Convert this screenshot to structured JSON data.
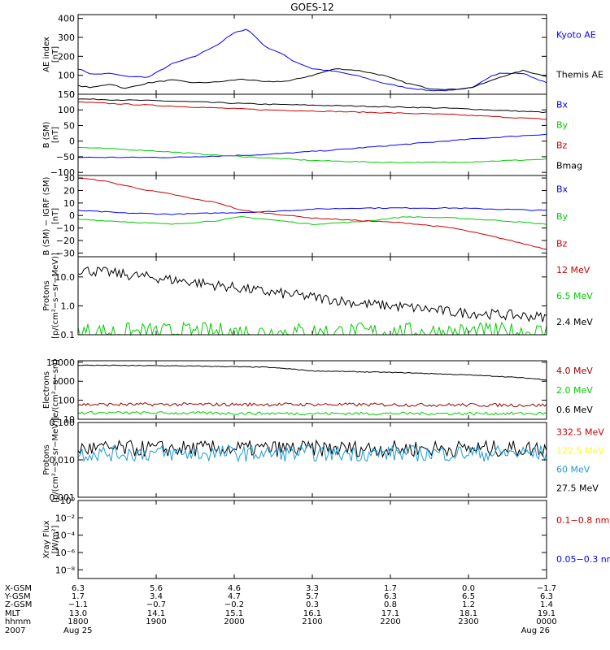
{
  "chart_data": {
    "type": "line",
    "title": "GOES-12",
    "x": {
      "ticks": [
        "1800",
        "1900",
        "2000",
        "2100",
        "2200",
        "2300",
        "0000"
      ]
    },
    "panels": [
      {
        "id": "ae",
        "ylabel": [
          "AE index",
          "[nT]"
        ],
        "ylim": [
          0,
          420
        ],
        "scale": "linear",
        "ticks": [
          0,
          100,
          200,
          300,
          400
        ],
        "tick_labels": [
          "0",
          "100",
          "200",
          "300",
          "400"
        ],
        "legend": [
          {
            "label": "Kyoto AE",
            "color": "#0000ff"
          },
          {
            "label": "Themis AE",
            "color": "#000000"
          }
        ],
        "series": [
          {
            "name": "Kyoto AE",
            "color": "#0000ff",
            "x": [
              0,
              0.03,
              0.07,
              0.1,
              0.15,
              0.2,
              0.25,
              0.28,
              0.3,
              0.33,
              0.36,
              0.38,
              0.4,
              0.43,
              0.46,
              0.5,
              0.55,
              0.6,
              0.65,
              0.7,
              0.75,
              0.8,
              0.84,
              0.88,
              0.9,
              0.95,
              1.0
            ],
            "y": [
              135,
              105,
              110,
              95,
              90,
              160,
              200,
              240,
              265,
              320,
              345,
              300,
              250,
              220,
              175,
              135,
              120,
              95,
              60,
              35,
              20,
              20,
              35,
              95,
              110,
              110,
              60
            ]
          },
          {
            "name": "Themis AE",
            "color": "#000000",
            "x": [
              0,
              0.03,
              0.07,
              0.1,
              0.15,
              0.2,
              0.25,
              0.3,
              0.35,
              0.4,
              0.45,
              0.5,
              0.55,
              0.6,
              0.65,
              0.7,
              0.75,
              0.8,
              0.84,
              0.88,
              0.9,
              0.95,
              1.0
            ],
            "y": [
              45,
              35,
              55,
              30,
              60,
              75,
              60,
              65,
              80,
              65,
              70,
              100,
              135,
              125,
              100,
              60,
              30,
              25,
              35,
              70,
              90,
              125,
              95
            ]
          }
        ]
      },
      {
        "id": "b",
        "ylabel": [
          "B (SM)",
          "[nT]"
        ],
        "ylim": [
          -110,
          150
        ],
        "scale": "linear",
        "ticks": [
          -100,
          -50,
          0,
          50,
          100,
          150
        ],
        "tick_labels": [
          "−100",
          "−50",
          "0",
          "50",
          "100",
          "150"
        ],
        "legend": [
          {
            "label": "Bx",
            "color": "#0000ff"
          },
          {
            "label": "By",
            "color": "#00cc00"
          },
          {
            "label": "Bz",
            "color": "#cc0000"
          },
          {
            "label": "Bmag",
            "color": "#000000"
          }
        ],
        "series": [
          {
            "name": "Bmag",
            "color": "#000000",
            "x": [
              0,
              0.2,
              0.4,
              0.6,
              0.8,
              1.0
            ],
            "y": [
              135,
              128,
              118,
              112,
              105,
              92
            ]
          },
          {
            "name": "Bz",
            "color": "#cc0000",
            "x": [
              0,
              0.2,
              0.4,
              0.6,
              0.8,
              1.0
            ],
            "y": [
              125,
              112,
              100,
              93,
              85,
              70
            ]
          },
          {
            "name": "Bx",
            "color": "#0000ff",
            "x": [
              0,
              0.2,
              0.4,
              0.55,
              0.7,
              0.85,
              1.0
            ],
            "y": [
              -52,
              -52,
              -43,
              -28,
              -10,
              8,
              22
            ]
          },
          {
            "name": "By",
            "color": "#00cc00",
            "x": [
              0,
              0.15,
              0.3,
              0.5,
              0.65,
              0.8,
              1.0
            ],
            "y": [
              -20,
              -30,
              -45,
              -62,
              -68,
              -68,
              -58
            ]
          }
        ]
      },
      {
        "id": "bigrf",
        "ylabel": [
          "B (SM) − IGRF (SM)",
          "[nT]"
        ],
        "ylim": [
          -33,
          32
        ],
        "scale": "linear",
        "ticks": [
          -30,
          -20,
          -10,
          0,
          10,
          20,
          30
        ],
        "tick_labels": [
          "−30",
          "−20",
          "−10",
          "0",
          "10",
          "20",
          "30"
        ],
        "legend": [
          {
            "label": "Bx",
            "color": "#0000ff"
          },
          {
            "label": "By",
            "color": "#00cc00"
          },
          {
            "label": "Bz",
            "color": "#cc0000"
          }
        ],
        "series": [
          {
            "name": "Bx",
            "color": "#0000ff",
            "x": [
              0,
              0.1,
              0.2,
              0.3,
              0.4,
              0.5,
              0.6,
              0.7,
              0.8,
              0.9,
              1.0
            ],
            "y": [
              4,
              2,
              1,
              2,
              3,
              5,
              6,
              6,
              6,
              5,
              4
            ]
          },
          {
            "name": "By",
            "color": "#00cc00",
            "x": [
              0,
              0.1,
              0.2,
              0.3,
              0.35,
              0.4,
              0.5,
              0.6,
              0.7,
              0.8,
              0.9,
              1.0
            ],
            "y": [
              -3,
              -5,
              -7,
              -4,
              -1,
              -3,
              -7,
              -5,
              -1,
              -2,
              -4,
              -7
            ]
          },
          {
            "name": "Bz",
            "color": "#cc0000",
            "x": [
              0,
              0.05,
              0.1,
              0.15,
              0.2,
              0.25,
              0.3,
              0.35,
              0.4,
              0.5,
              0.6,
              0.7,
              0.8,
              0.9,
              1.0
            ],
            "y": [
              30,
              28,
              24,
              20,
              17,
              13,
              10,
              4,
              2,
              -2,
              -4,
              -6,
              -10,
              -18,
              -27
            ]
          }
        ]
      },
      {
        "id": "protons_low",
        "ylabel": [
          "Protons",
          "[p/(cm²−s−sr−MeV)]"
        ],
        "ylim": [
          0.1,
          50
        ],
        "scale": "log",
        "ticks": [
          0.1,
          1,
          10
        ],
        "tick_labels": [
          "0.1",
          "1.0",
          "10.0"
        ],
        "legend": [
          {
            "label": "12 MeV",
            "color": "#cc0000"
          },
          {
            "label": "6.5 MeV",
            "color": "#00cc00"
          },
          {
            "label": "2.4 MeV",
            "color": "#000000"
          }
        ],
        "series": [
          {
            "name": "2.4 MeV",
            "color": "#000000",
            "noise": 0.18,
            "x": [
              0,
              0.1,
              0.2,
              0.3,
              0.4,
              0.5,
              0.6,
              0.7,
              0.8,
              0.9,
              1.0
            ],
            "y": [
              18,
              12,
              8,
              5,
              3,
              2,
              1.2,
              0.9,
              0.6,
              0.5,
              0.4
            ]
          },
          {
            "name": "6.5 MeV",
            "color": "#00cc00",
            "noise": 0.35,
            "x": [
              0,
              0.5,
              1.0
            ],
            "y": [
              0.12,
              0.12,
              0.12
            ]
          }
        ]
      },
      {
        "id": "electrons",
        "ylabel": [
          "Electrons",
          "[e/(cm²−s−sr)]"
        ],
        "ylim": [
          10,
          12000
        ],
        "scale": "log",
        "ticks": [
          10,
          100,
          1000,
          10000
        ],
        "tick_labels": [
          "10",
          "100",
          "1000",
          "10000"
        ],
        "legend": [
          {
            "label": "4.0 MeV",
            "color": "#990000"
          },
          {
            "label": "2.0 MeV",
            "color": "#00cc00"
          },
          {
            "label": "0.6 MeV",
            "color": "#000000"
          }
        ],
        "series": [
          {
            "name": "0.6 MeV",
            "color": "#000000",
            "noise": 0.02,
            "x": [
              0,
              0.2,
              0.4,
              0.5,
              0.7,
              0.9,
              1.0
            ],
            "y": [
              7000,
              6500,
              5500,
              3500,
              2800,
              1800,
              1200
            ]
          },
          {
            "name": "4.0 MeV",
            "color": "#990000",
            "noise": 0.09,
            "x": [
              0,
              0.5,
              1.0
            ],
            "y": [
              60,
              60,
              55
            ]
          },
          {
            "name": "2.0 MeV",
            "color": "#00cc00",
            "noise": 0.08,
            "x": [
              0,
              0.5,
              1.0
            ],
            "y": [
              22,
              20,
              20
            ]
          }
        ]
      },
      {
        "id": "protons_high",
        "ylabel": [
          "Protons",
          "[p/(cm²−s−sr−MeV)]"
        ],
        "ylim": [
          0.001,
          0.1
        ],
        "scale": "log",
        "ticks": [
          0.001,
          0.01,
          0.1
        ],
        "tick_labels": [
          "0.001",
          "0.010",
          "0.100"
        ],
        "legend": [
          {
            "label": "332.5 MeV",
            "color": "#cc0000"
          },
          {
            "label": "122.5 MeV",
            "color": "#ffff00"
          },
          {
            "label": "60 MeV",
            "color": "#1e9bd7"
          },
          {
            "label": "27.5 MeV",
            "color": "#000000"
          }
        ],
        "series": [
          {
            "name": "27.5 MeV",
            "color": "#000000",
            "noise": 0.22,
            "x": [
              0,
              1.0
            ],
            "y": [
              0.02,
              0.02
            ]
          },
          {
            "name": "60 MeV",
            "color": "#1e9bd7",
            "noise": 0.22,
            "x": [
              0,
              1.0
            ],
            "y": [
              0.015,
              0.015
            ]
          }
        ]
      },
      {
        "id": "xray",
        "ylabel": [
          "Xray Flux",
          "[W/m²]"
        ],
        "ylim": [
          1e-09,
          1
        ],
        "scale": "log",
        "ticks": [
          1e-08,
          1e-06,
          0.0001,
          0.01,
          1
        ],
        "tick_labels": [
          "10⁻⁸",
          "10⁻⁶",
          "10⁻⁴",
          "10⁻²",
          "10⁰"
        ],
        "legend": [
          {
            "label": "0.1−0.8 nm",
            "color": "#cc0000"
          },
          {
            "label": "0.05−0.3 nm",
            "color": "#0000ff"
          }
        ],
        "series": []
      }
    ],
    "ephemeris": {
      "labels": [
        "X-GSM",
        "Y-GSM",
        "Z-GSM",
        "MLT",
        "hhmm",
        "2007"
      ],
      "columns": [
        [
          "6.3",
          "1.7",
          "−1.1",
          "13.0",
          "1800",
          "Aug 25"
        ],
        [
          "5.6",
          "3.4",
          "−0.7",
          "14.1",
          "1900",
          ""
        ],
        [
          "4.6",
          "4.7",
          "−0.2",
          "15.1",
          "2000",
          ""
        ],
        [
          "3.3",
          "5.7",
          "0.3",
          "16.1",
          "2100",
          ""
        ],
        [
          "1.7",
          "6.3",
          "0.8",
          "17.1",
          "2200",
          ""
        ],
        [
          "0.0",
          "6.5",
          "1.2",
          "18.1",
          "2300",
          ""
        ],
        [
          "−1.7",
          "6.3",
          "1.4",
          "19.1",
          "0000",
          "Aug 26"
        ]
      ]
    }
  }
}
